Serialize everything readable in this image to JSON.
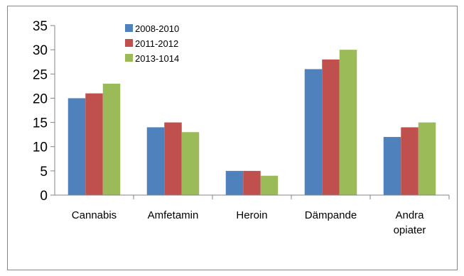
{
  "chart_data": {
    "type": "bar",
    "categories": [
      [
        "Cannabis"
      ],
      [
        "Amfetamin"
      ],
      [
        "Heroin"
      ],
      [
        "Dämpande"
      ],
      [
        "Andra",
        "opiater"
      ]
    ],
    "series": [
      {
        "name": "2008-2010",
        "color": "#4F81BD",
        "values": [
          20,
          14,
          5,
          26,
          12
        ]
      },
      {
        "name": "2011-2012",
        "color": "#C0504D",
        "values": [
          21,
          15,
          5,
          28,
          14
        ]
      },
      {
        "name": "2013-1014",
        "color": "#9BBB59",
        "values": [
          23,
          13,
          4,
          30,
          15
        ]
      }
    ],
    "ylim": [
      0,
      35
    ],
    "yticks": [
      0,
      5,
      10,
      15,
      20,
      25,
      30,
      35
    ],
    "grid": false,
    "legend_position": "top-left"
  }
}
